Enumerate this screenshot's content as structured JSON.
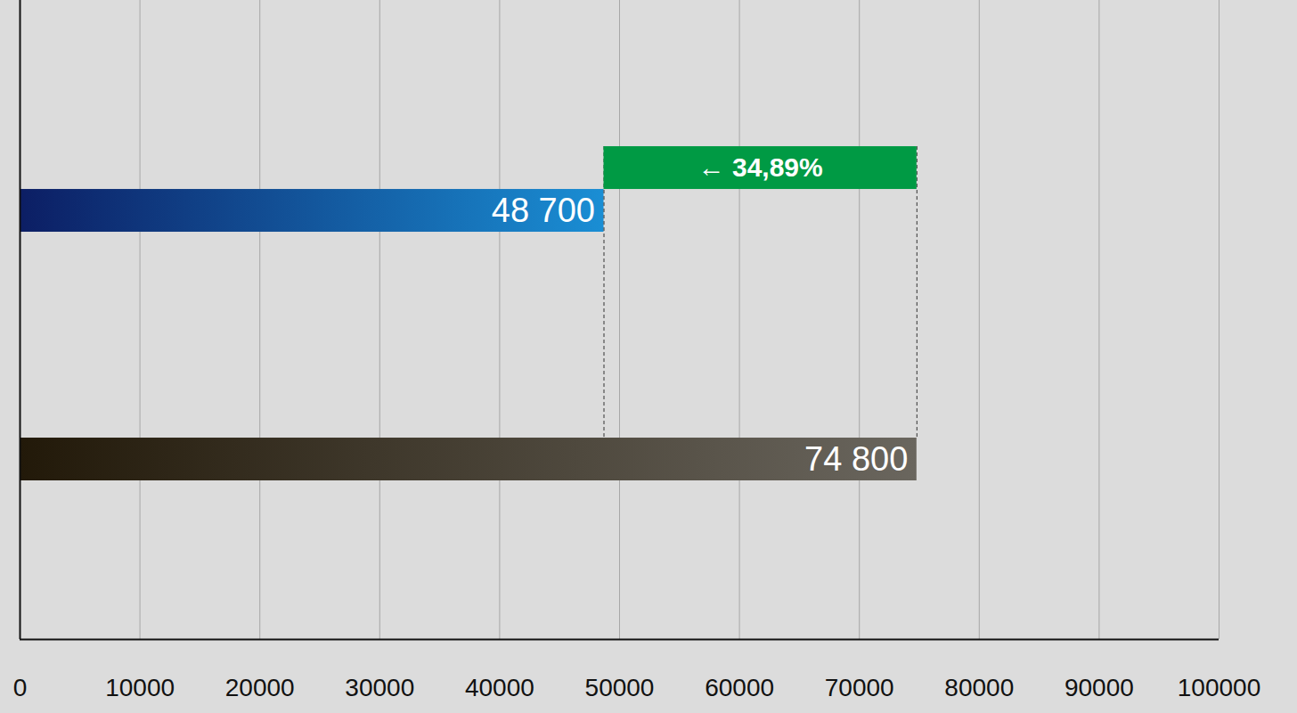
{
  "chart_data": {
    "type": "bar",
    "orientation": "horizontal",
    "categories": [
      null,
      null
    ],
    "values": [
      48700,
      74800
    ],
    "value_labels": [
      "48 700",
      "74 800"
    ],
    "colors": [
      "#1a8ed4",
      "#6a665e"
    ],
    "data_labels": true,
    "xlim": [
      0,
      100000
    ],
    "xticks": [
      0,
      10000,
      20000,
      30000,
      40000,
      50000,
      60000,
      70000,
      80000,
      90000,
      100000
    ],
    "grid": true,
    "tick_labels": "x",
    "annotations": [
      {
        "text": "← 34,89%",
        "color": "#009a44"
      }
    ]
  }
}
